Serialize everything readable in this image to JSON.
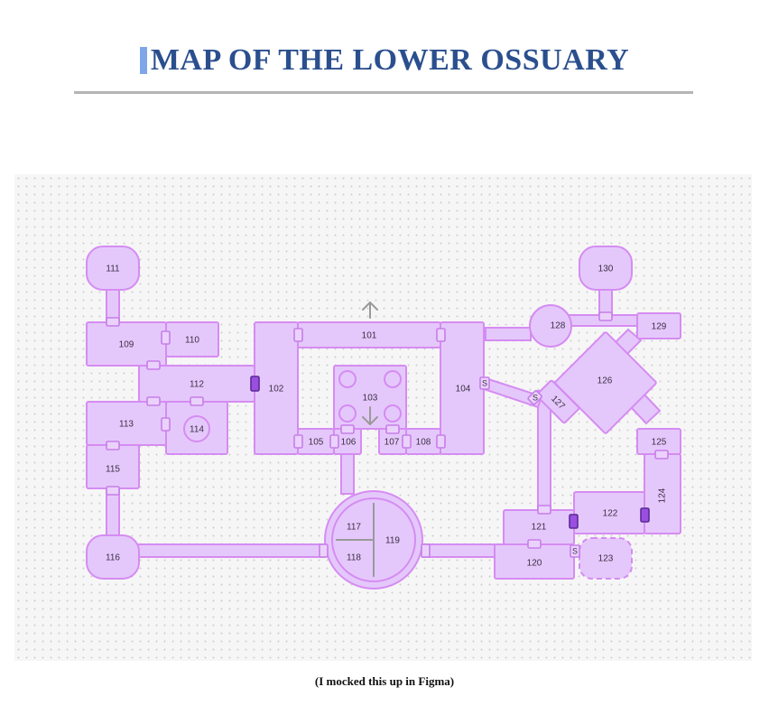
{
  "title": "MAP OF THE LOWER OSSUARY",
  "caption": "(I mocked this up in Figma)",
  "colors": {
    "room_fill": "#e5c8fb",
    "room_stroke": "#d58cf2",
    "locked_door": "#9b4fe0",
    "title": "#2b4f8e",
    "rule": "#b5b5b5"
  },
  "rooms": {
    "r101": "101",
    "r102": "102",
    "r103": "103",
    "r104": "104",
    "r105": "105",
    "r106": "106",
    "r107": "107",
    "r108": "108",
    "r109": "109",
    "r110": "110",
    "r111": "111",
    "r112": "112",
    "r113": "113",
    "r114": "114",
    "r115": "115",
    "r116": "116",
    "r117": "117",
    "r118": "118",
    "r119": "119",
    "r120": "120",
    "r121": "121",
    "r122": "122",
    "r123": "123",
    "r124": "124",
    "r125": "125",
    "r126": "126",
    "r127": "127",
    "r128": "128",
    "r129": "129",
    "r130": "130"
  },
  "secret_door_label": "S",
  "icons": {
    "stairs_up": "arrow-up-icon",
    "stairs_down": "arrow-down-icon"
  }
}
